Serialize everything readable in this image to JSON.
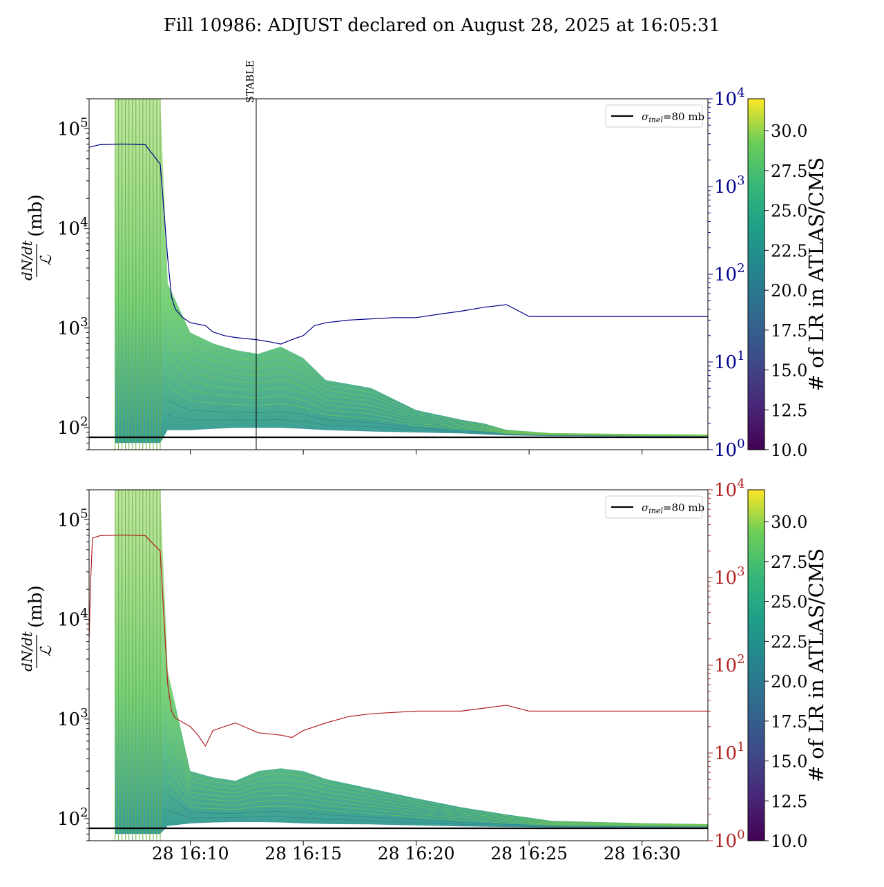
{
  "title": "Fill 10986: ADJUST declared on August 28, 2025 at 16:05:31",
  "chart_data": [
    {
      "type": "line",
      "panel": "top",
      "ylabel_num": "dN/dt",
      "ylabel_den": "ℒ",
      "ylabel_unit": "(mb)",
      "yscale": "log",
      "ylim": [
        60,
        200000
      ],
      "yticks": [
        {
          "value": 100,
          "label": "10",
          "exp": "2"
        },
        {
          "value": 1000,
          "label": "10",
          "exp": "3"
        },
        {
          "value": 10000,
          "label": "10",
          "exp": "4"
        },
        {
          "value": 100000,
          "label": "10",
          "exp": "5"
        }
      ],
      "y2scale": "log",
      "y2lim": [
        1,
        10000
      ],
      "y2color": "#00008b",
      "y2ticks": [
        {
          "value": 1,
          "label": "10",
          "exp": "0"
        },
        {
          "value": 10,
          "label": "10",
          "exp": "1"
        },
        {
          "value": 100,
          "label": "10",
          "exp": "2"
        },
        {
          "value": 1000,
          "label": "10",
          "exp": "3"
        },
        {
          "value": 10000,
          "label": "10",
          "exp": "4"
        }
      ],
      "xlim": [
        "16:05:31",
        "16:32:55"
      ],
      "annotation": {
        "label": "STABLE",
        "x": "16:12:55"
      },
      "legend": {
        "label_sigma": "σ",
        "label_sub": "inel",
        "label_rest": "=80 mb",
        "placement": "upper right"
      },
      "reference_line": {
        "value": 80
      },
      "secondary_series": {
        "x": [
          "16:05:31",
          "16:06:00",
          "16:07:00",
          "16:08:00",
          "16:08:40",
          "16:09:00",
          "16:09:10",
          "16:09:20",
          "16:09:40",
          "16:10:00",
          "16:10:40",
          "16:11:00",
          "16:11:30",
          "16:12:00",
          "16:12:55",
          "16:13:30",
          "16:14:00",
          "16:14:30",
          "16:15:00",
          "16:15:30",
          "16:16:00",
          "16:17:00",
          "16:18:00",
          "16:19:00",
          "16:20:00",
          "16:21:00",
          "16:22:00",
          "16:23:00",
          "16:24:00",
          "16:25:00",
          "16:27:00",
          "16:30:00",
          "16:32:55"
        ],
        "values": [
          2800,
          3000,
          3050,
          3000,
          1800,
          150,
          55,
          40,
          32,
          28,
          26,
          22,
          20,
          19,
          18,
          17,
          16,
          18,
          20,
          26,
          28,
          30,
          31,
          32,
          32,
          35,
          38,
          42,
          45,
          33,
          33,
          33,
          33
        ]
      },
      "cloud_envelope": {
        "x": [
          "16:05:31",
          "16:06:40",
          "16:08:40",
          "16:09:00",
          "16:10:00",
          "16:11:00",
          "16:12:00",
          "16:13:00",
          "16:14:00",
          "16:15:00",
          "16:16:00",
          "16:18:00",
          "16:20:00",
          "16:22:00",
          "16:23:00",
          "16:24:00",
          "16:26:00",
          "16:30:00",
          "16:32:55"
        ],
        "upper": [
          null,
          200000,
          200000,
          2800,
          900,
          700,
          600,
          550,
          650,
          500,
          300,
          250,
          150,
          120,
          110,
          95,
          88,
          86,
          85
        ],
        "lower": [
          null,
          70,
          70,
          95,
          95,
          98,
          100,
          100,
          100,
          98,
          95,
          92,
          90,
          88,
          86,
          84,
          83,
          82,
          82
        ]
      },
      "colorbar": {
        "label": "# of LR in ATLAS/CMS",
        "range": [
          10,
          32
        ],
        "ticks": [
          "10.0",
          "12.5",
          "15.0",
          "17.5",
          "20.0",
          "22.5",
          "25.0",
          "27.5",
          "30.0"
        ]
      }
    },
    {
      "type": "line",
      "panel": "bottom",
      "ylabel_num": "dN/dt",
      "ylabel_den": "ℒ",
      "ylabel_unit": "(mb)",
      "yscale": "log",
      "ylim": [
        60,
        200000
      ],
      "yticks": [
        {
          "value": 100,
          "label": "10",
          "exp": "2"
        },
        {
          "value": 1000,
          "label": "10",
          "exp": "3"
        },
        {
          "value": 10000,
          "label": "10",
          "exp": "4"
        },
        {
          "value": 100000,
          "label": "10",
          "exp": "5"
        }
      ],
      "y2scale": "log",
      "y2lim": [
        1,
        10000
      ],
      "y2color": "#b22222",
      "y2ticks": [
        {
          "value": 1,
          "label": "10",
          "exp": "0"
        },
        {
          "value": 10,
          "label": "10",
          "exp": "1"
        },
        {
          "value": 100,
          "label": "10",
          "exp": "2"
        },
        {
          "value": 1000,
          "label": "10",
          "exp": "3"
        },
        {
          "value": 10000,
          "label": "10",
          "exp": "4"
        }
      ],
      "xlim": [
        "16:05:31",
        "16:32:55"
      ],
      "xticks": [
        {
          "value": "16:10:00",
          "label": "28 16:10"
        },
        {
          "value": "16:15:00",
          "label": "28 16:15"
        },
        {
          "value": "16:20:00",
          "label": "28 16:20"
        },
        {
          "value": "16:25:00",
          "label": "28 16:25"
        },
        {
          "value": "16:30:00",
          "label": "28 16:30"
        }
      ],
      "legend": {
        "label_sigma": "σ",
        "label_sub": "inel",
        "label_rest": "=80 mb",
        "placement": "upper right"
      },
      "reference_line": {
        "value": 80
      },
      "secondary_series": {
        "x": [
          "16:05:31",
          "16:05:35",
          "16:05:40",
          "16:06:00",
          "16:07:00",
          "16:08:00",
          "16:08:40",
          "16:09:00",
          "16:09:10",
          "16:09:20",
          "16:10:00",
          "16:10:20",
          "16:10:40",
          "16:11:00",
          "16:11:30",
          "16:12:00",
          "16:13:00",
          "16:14:00",
          "16:14:30",
          "16:15:00",
          "16:16:00",
          "16:17:00",
          "16:18:00",
          "16:20:00",
          "16:22:00",
          "16:24:00",
          "16:25:00",
          "16:28:00",
          "16:30:00",
          "16:32:55"
        ],
        "values": [
          200,
          900,
          2800,
          3000,
          3050,
          3000,
          2000,
          60,
          30,
          25,
          20,
          16,
          12,
          18,
          20,
          22,
          17,
          16,
          15,
          18,
          22,
          26,
          28,
          30,
          30,
          35,
          30,
          30,
          30,
          30
        ]
      },
      "cloud_envelope": {
        "x": [
          "16:05:31",
          "16:06:40",
          "16:08:40",
          "16:09:00",
          "16:10:00",
          "16:11:00",
          "16:12:00",
          "16:13:00",
          "16:14:00",
          "16:15:00",
          "16:16:00",
          "16:18:00",
          "16:20:00",
          "16:22:00",
          "16:24:00",
          "16:26:00",
          "16:30:00",
          "16:32:55"
        ],
        "upper": [
          null,
          200000,
          200000,
          3000,
          300,
          260,
          240,
          300,
          320,
          300,
          250,
          200,
          160,
          130,
          110,
          95,
          90,
          88
        ],
        "lower": [
          null,
          70,
          70,
          85,
          90,
          92,
          93,
          93,
          92,
          90,
          89,
          88,
          86,
          84,
          83,
          82,
          82,
          82
        ]
      },
      "colorbar": {
        "label": "# of LR in ATLAS/CMS",
        "range": [
          10,
          32
        ],
        "ticks": [
          "10.0",
          "12.5",
          "15.0",
          "17.5",
          "20.0",
          "22.5",
          "25.0",
          "27.5",
          "30.0"
        ]
      }
    }
  ]
}
